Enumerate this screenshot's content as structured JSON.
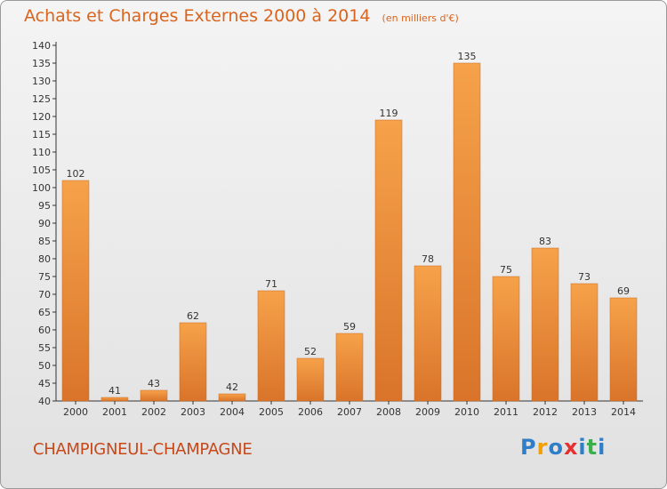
{
  "header": {
    "title": "Achats et Charges Externes 2000 à 2014",
    "subtitle": "(en milliers d'€)"
  },
  "footer": {
    "commune": "CHAMPIGNEUL-CHAMPAGNE",
    "logo_text": "Proxiti"
  },
  "colors": {
    "bar_light": "#f6a24a",
    "bar_dark": "#d9742a",
    "title": "#d9641e",
    "commune": "#c8481a"
  },
  "chart_data": {
    "type": "bar",
    "title": "Achats et Charges Externes 2000 à 2014",
    "subtitle": "(en milliers d'€)",
    "categories": [
      "2000",
      "2001",
      "2002",
      "2003",
      "2004",
      "2005",
      "2006",
      "2007",
      "2008",
      "2009",
      "2010",
      "2011",
      "2012",
      "2013",
      "2014"
    ],
    "values": [
      102,
      41,
      43,
      62,
      42,
      71,
      52,
      59,
      119,
      78,
      135,
      75,
      83,
      73,
      69
    ],
    "data_labels": [
      "102",
      "41",
      "43",
      "62",
      "42",
      "71",
      "52",
      "59",
      "119",
      "78",
      "135",
      "75",
      "83",
      "73",
      "69"
    ],
    "ylim": [
      40,
      140
    ],
    "yticks": [
      40,
      45,
      50,
      55,
      60,
      65,
      70,
      75,
      80,
      85,
      90,
      95,
      100,
      105,
      110,
      115,
      120,
      125,
      130,
      135,
      140
    ],
    "grid": false
  }
}
